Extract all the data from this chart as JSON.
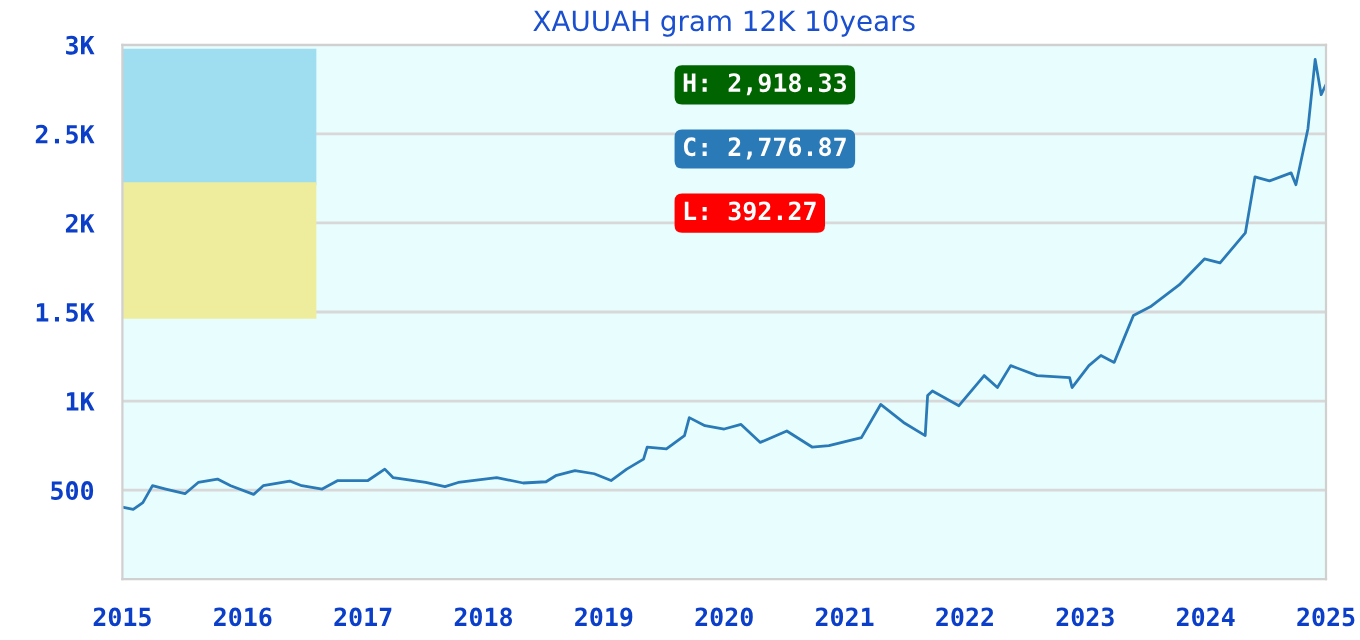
{
  "chart_data": {
    "type": "line",
    "title": "XAUUAH gram 12K 10years",
    "x": [
      2015.0,
      2015.09,
      2015.17,
      2015.25,
      2015.36,
      2015.52,
      2015.63,
      2015.79,
      2015.9,
      2016.09,
      2016.17,
      2016.39,
      2016.49,
      2016.66,
      2016.79,
      2017.04,
      2017.18,
      2017.25,
      2017.52,
      2017.68,
      2017.79,
      2018.11,
      2018.33,
      2018.52,
      2018.6,
      2018.76,
      2018.92,
      2019.06,
      2019.19,
      2019.33,
      2019.36,
      2019.52,
      2019.67,
      2019.71,
      2019.84,
      2020.0,
      2020.14,
      2020.3,
      2020.52,
      2020.73,
      2020.87,
      2021.14,
      2021.3,
      2021.49,
      2021.67,
      2021.69,
      2021.73,
      2021.95,
      2022.16,
      2022.27,
      2022.38,
      2022.6,
      2022.87,
      2022.89,
      2023.03,
      2023.13,
      2023.24,
      2023.32,
      2023.4,
      2023.54,
      2023.78,
      2023.99,
      2024.12,
      2024.33,
      2024.41,
      2024.53,
      2024.71,
      2024.75,
      2024.85,
      2024.91,
      2024.96,
      2025.0
    ],
    "series": [
      {
        "color": "#2a7ab8",
        "values": [
          405,
          392,
          430,
          525,
          506,
          480,
          543,
          562,
          525,
          476,
          525,
          551,
          525,
          506,
          554,
          554,
          618,
          570,
          543,
          520,
          543,
          570,
          540,
          547,
          581,
          610,
          592,
          554,
          618,
          674,
          742,
          731,
          806,
          907,
          862,
          843,
          869,
          768,
          832,
          742,
          750,
          795,
          981,
          880,
          806,
          1031,
          1057,
          974,
          1143,
          1076,
          1199,
          1143,
          1132,
          1076,
          1199,
          1256,
          1217,
          1349,
          1480,
          1529,
          1652,
          1798,
          1776,
          1944,
          2259,
          2236,
          2281,
          2214,
          2529,
          2918,
          2720,
          2777
        ]
      }
    ],
    "xlim": [
      2015,
      2025
    ],
    "xticks": [
      2015,
      2016,
      2017,
      2018,
      2019,
      2020,
      2021,
      2022,
      2023,
      2024,
      2025
    ],
    "ylim": [
      0,
      3000
    ],
    "yticks": [
      500,
      {
        "value": 1000,
        "label": "1K"
      },
      {
        "value": 1500,
        "label": "1.5K"
      },
      {
        "value": 2000,
        "label": "2K"
      },
      {
        "value": 2500,
        "label": "2.5K"
      },
      {
        "value": 3000,
        "label": "3K"
      }
    ],
    "grid": "y",
    "legend": false,
    "annotations": [
      "H: 2,918.33",
      "C: 2,776.87",
      "L: 392.27"
    ]
  }
}
